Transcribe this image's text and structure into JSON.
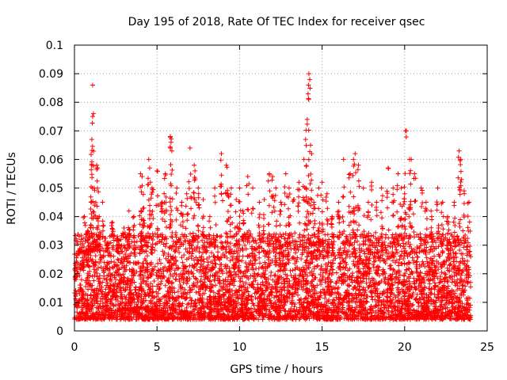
{
  "chart_data": {
    "type": "scatter",
    "title": "Day 195 of 2018, Rate Of TEC Index for receiver qsec",
    "xlabel": "GPS time / hours",
    "ylabel": "ROTI / TECUs",
    "xlim": [
      0,
      25
    ],
    "ylim": [
      0,
      0.1
    ],
    "x_ticks": [
      "0",
      "5",
      "10",
      "15",
      "20",
      "25"
    ],
    "y_ticks": [
      "0",
      "0.01",
      "0.02",
      "0.03",
      "0.04",
      "0.05",
      "0.06",
      "0.07",
      "0.08",
      "0.09",
      "0.1"
    ],
    "grid": true,
    "marker": "plus",
    "color": "#ff0000",
    "series": [
      {
        "name": "ROTI",
        "x": [
          0.1,
          0.3,
          0.5,
          0.6,
          0.8,
          1.0,
          1.05,
          1.1,
          1.15,
          1.2,
          1.35,
          1.4,
          1.5,
          1.7,
          2.0,
          2.3,
          2.6,
          3.0,
          3.3,
          3.6,
          4.0,
          4.1,
          4.2,
          4.5,
          4.6,
          4.7,
          5.0,
          5.3,
          5.5,
          5.8,
          5.85,
          5.9,
          6.2,
          6.5,
          6.8,
          7.0,
          7.25,
          7.3,
          7.5,
          7.8,
          8.2,
          8.5,
          8.9,
          9.2,
          9.3,
          9.5,
          9.8,
          10.0,
          10.2,
          10.5,
          10.8,
          11.2,
          11.5,
          11.8,
          12.0,
          12.2,
          12.5,
          12.8,
          13.0,
          13.3,
          13.6,
          13.9,
          14.0,
          14.1,
          14.15,
          14.2,
          14.25,
          14.3,
          14.5,
          14.8,
          15.0,
          15.3,
          15.6,
          16.0,
          16.3,
          16.7,
          16.9,
          17.0,
          17.2,
          17.5,
          17.8,
          18.0,
          18.3,
          18.6,
          19.0,
          19.3,
          19.6,
          19.8,
          20.0,
          20.05,
          20.3,
          20.4,
          20.6,
          21.0,
          21.3,
          21.6,
          22.0,
          22.3,
          22.6,
          23.0,
          23.3,
          23.4,
          23.6,
          23.9
        ],
        "y": [
          0.018,
          0.028,
          0.022,
          0.04,
          0.035,
          0.045,
          0.067,
          0.086,
          0.076,
          0.05,
          0.058,
          0.057,
          0.04,
          0.045,
          0.03,
          0.038,
          0.033,
          0.036,
          0.042,
          0.04,
          0.055,
          0.054,
          0.043,
          0.06,
          0.052,
          0.05,
          0.056,
          0.045,
          0.055,
          0.068,
          0.066,
          0.063,
          0.05,
          0.045,
          0.048,
          0.064,
          0.058,
          0.056,
          0.05,
          0.046,
          0.04,
          0.05,
          0.062,
          0.058,
          0.048,
          0.05,
          0.046,
          0.05,
          0.042,
          0.054,
          0.05,
          0.045,
          0.046,
          0.055,
          0.054,
          0.05,
          0.045,
          0.055,
          0.05,
          0.046,
          0.052,
          0.06,
          0.067,
          0.074,
          0.083,
          0.09,
          0.088,
          0.065,
          0.045,
          0.05,
          0.052,
          0.048,
          0.04,
          0.045,
          0.06,
          0.055,
          0.06,
          0.062,
          0.058,
          0.05,
          0.045,
          0.052,
          0.045,
          0.05,
          0.057,
          0.05,
          0.055,
          0.05,
          0.048,
          0.07,
          0.06,
          0.06,
          0.055,
          0.05,
          0.045,
          0.042,
          0.05,
          0.045,
          0.04,
          0.045,
          0.063,
          0.06,
          0.049,
          0.045
        ],
        "baseline_range": [
          0.004,
          0.034
        ]
      }
    ]
  }
}
